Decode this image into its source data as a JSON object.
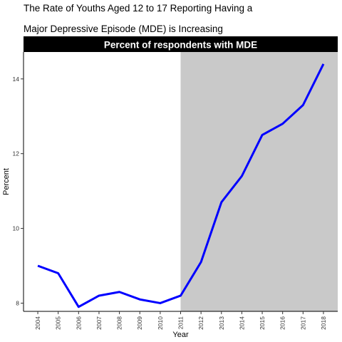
{
  "title_lines": [
    "The Rate of Youths Aged 12 to 17 Reporting Having a",
    "Major Depressive Episode (MDE) is Increasing"
  ],
  "colors": {
    "line": "#0000ff",
    "shade": "#c9c9c9",
    "strip_bg": "#000000",
    "strip_text": "#ffffff"
  },
  "chart_data": {
    "type": "line",
    "title": "The Rate of Youths Aged 12 to 17 Reporting Having a Major Depressive Episode (MDE) is Increasing",
    "facet_label": "Percent of respondents with MDE",
    "xlabel": "Year",
    "ylabel": "Percent",
    "x": [
      2004,
      2005,
      2006,
      2007,
      2008,
      2009,
      2010,
      2011,
      2012,
      2013,
      2014,
      2015,
      2016,
      2017,
      2018
    ],
    "series": [
      {
        "values": [
          9.0,
          8.8,
          7.9,
          8.2,
          8.3,
          8.1,
          8.0,
          8.2,
          9.1,
          10.7,
          11.4,
          12.5,
          12.8,
          13.3,
          14.4
        ]
      }
    ],
    "x_ticks": [
      "2004",
      "2005",
      "2006",
      "2007",
      "2008",
      "2009",
      "2010",
      "2011",
      "2012",
      "2013",
      "2014",
      "2015",
      "2016",
      "2017",
      "2018"
    ],
    "y_ticks": [
      8,
      10,
      12,
      14
    ],
    "xlim": [
      2003.3,
      2018.7
    ],
    "ylim": [
      7.78,
      14.72
    ],
    "shaded_region": [
      2011,
      2018.7
    ],
    "grid": false
  }
}
